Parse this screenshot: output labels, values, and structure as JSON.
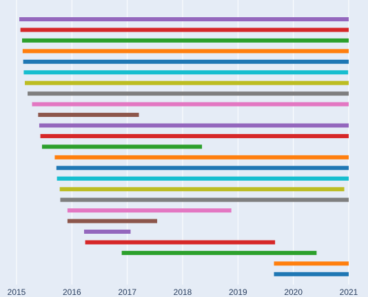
{
  "chart_data": {
    "type": "timeline",
    "title": "",
    "xlabel": "",
    "ylabel": "",
    "x_ticks": [
      "2015",
      "2016",
      "2017",
      "2018",
      "2019",
      "2020",
      "2021"
    ],
    "xlim": [
      2015.0,
      2021.05
    ],
    "grid": true,
    "legend": "none",
    "segments": [
      {
        "start": 2015.05,
        "end": 2021.0,
        "color": "#9467bd"
      },
      {
        "start": 2015.07,
        "end": 2021.0,
        "color": "#d62728"
      },
      {
        "start": 2015.1,
        "end": 2021.0,
        "color": "#2ca02c"
      },
      {
        "start": 2015.11,
        "end": 2021.0,
        "color": "#ff7f0e"
      },
      {
        "start": 2015.12,
        "end": 2021.0,
        "color": "#1f77b4"
      },
      {
        "start": 2015.13,
        "end": 2020.99,
        "color": "#17becf"
      },
      {
        "start": 2015.15,
        "end": 2021.0,
        "color": "#bcbd22"
      },
      {
        "start": 2015.2,
        "end": 2021.0,
        "color": "#7f7f7f"
      },
      {
        "start": 2015.28,
        "end": 2021.0,
        "color": "#e377c2"
      },
      {
        "start": 2015.39,
        "end": 2017.21,
        "color": "#8c564b"
      },
      {
        "start": 2015.41,
        "end": 2021.0,
        "color": "#9467bd"
      },
      {
        "start": 2015.43,
        "end": 2021.0,
        "color": "#d62728"
      },
      {
        "start": 2015.46,
        "end": 2018.35,
        "color": "#2ca02c"
      },
      {
        "start": 2015.69,
        "end": 2021.0,
        "color": "#ff7f0e"
      },
      {
        "start": 2015.72,
        "end": 2021.0,
        "color": "#1f77b4"
      },
      {
        "start": 2015.73,
        "end": 2021.0,
        "color": "#17becf"
      },
      {
        "start": 2015.78,
        "end": 2020.92,
        "color": "#bcbd22"
      },
      {
        "start": 2015.79,
        "end": 2021.0,
        "color": "#7f7f7f"
      },
      {
        "start": 2015.92,
        "end": 2018.88,
        "color": "#e377c2"
      },
      {
        "start": 2015.92,
        "end": 2017.54,
        "color": "#8c564b"
      },
      {
        "start": 2016.22,
        "end": 2017.06,
        "color": "#9467bd"
      },
      {
        "start": 2016.24,
        "end": 2019.67,
        "color": "#d62728"
      },
      {
        "start": 2016.9,
        "end": 2020.42,
        "color": "#2ca02c"
      },
      {
        "start": 2019.65,
        "end": 2021.0,
        "color": "#ff7f0e"
      },
      {
        "start": 2019.65,
        "end": 2021.0,
        "color": "#1f77b4"
      }
    ]
  }
}
